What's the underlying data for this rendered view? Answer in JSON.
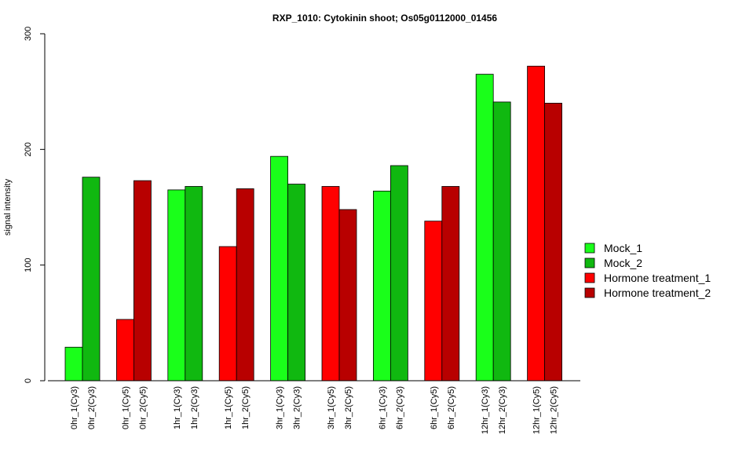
{
  "chart_data": {
    "type": "bar",
    "title": "RXP_1010: Cytokinin shoot; Os05g0112000_01456",
    "xlabel": "",
    "ylabel": "signal intensity",
    "ylim": [
      0,
      300
    ],
    "yticks": [
      0,
      100,
      200,
      300
    ],
    "grid": false,
    "legend_position": "right",
    "series": [
      {
        "name": "Mock_1",
        "color": "#1aff1a"
      },
      {
        "name": "Mock_2",
        "color": "#10b810"
      },
      {
        "name": "Hormone treatment_1",
        "color": "#ff0000"
      },
      {
        "name": "Hormone treatment_2",
        "color": "#b80000"
      }
    ],
    "groups": [
      {
        "bars": [
          {
            "label": "0hr_1(Cy3)",
            "value": 29,
            "series": 0
          },
          {
            "label": "0hr_2(Cy3)",
            "value": 176,
            "series": 1
          }
        ]
      },
      {
        "bars": [
          {
            "label": "0hr_1(Cy5)",
            "value": 53,
            "series": 2
          },
          {
            "label": "0hr_2(Cy5)",
            "value": 173,
            "series": 3
          }
        ]
      },
      {
        "bars": [
          {
            "label": "1hr_1(Cy3)",
            "value": 165,
            "series": 0
          },
          {
            "label": "1hr_2(Cy3)",
            "value": 168,
            "series": 1
          }
        ]
      },
      {
        "bars": [
          {
            "label": "1hr_1(Cy5)",
            "value": 116,
            "series": 2
          },
          {
            "label": "1hr_2(Cy5)",
            "value": 166,
            "series": 3
          }
        ]
      },
      {
        "bars": [
          {
            "label": "3hr_1(Cy3)",
            "value": 194,
            "series": 0
          },
          {
            "label": "3hr_2(Cy3)",
            "value": 170,
            "series": 1
          }
        ]
      },
      {
        "bars": [
          {
            "label": "3hr_1(Cy5)",
            "value": 168,
            "series": 2
          },
          {
            "label": "3hr_2(Cy5)",
            "value": 148,
            "series": 3
          }
        ]
      },
      {
        "bars": [
          {
            "label": "6hr_1(Cy3)",
            "value": 164,
            "series": 0
          },
          {
            "label": "6hr_2(Cy3)",
            "value": 186,
            "series": 1
          }
        ]
      },
      {
        "bars": [
          {
            "label": "6hr_1(Cy5)",
            "value": 138,
            "series": 2
          },
          {
            "label": "6hr_2(Cy5)",
            "value": 168,
            "series": 3
          }
        ]
      },
      {
        "bars": [
          {
            "label": "12hr_1(Cy3)",
            "value": 265,
            "series": 0
          },
          {
            "label": "12hr_2(Cy3)",
            "value": 241,
            "series": 1
          }
        ]
      },
      {
        "bars": [
          {
            "label": "12hr_1(Cy5)",
            "value": 272,
            "series": 2
          },
          {
            "label": "12hr_2(Cy5)",
            "value": 240,
            "series": 3
          }
        ]
      }
    ]
  }
}
